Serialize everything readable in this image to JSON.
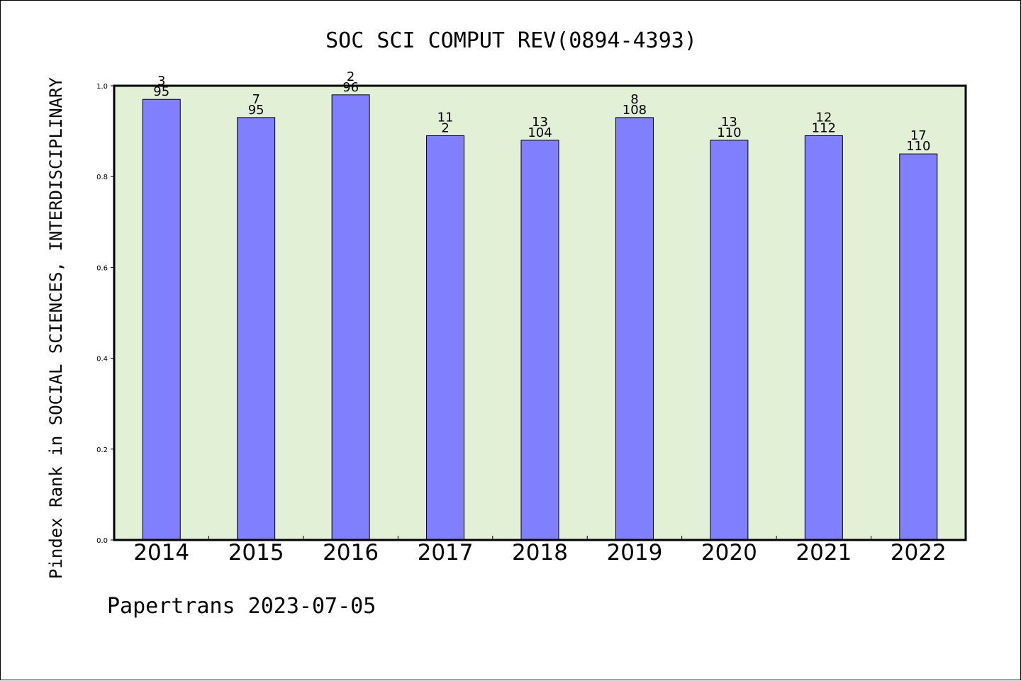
{
  "chart_data": {
    "type": "bar",
    "title": "SOC SCI COMPUT REV(0894-4393)",
    "ylabel": "Pindex Rank in SOCIAL SCIENCES, INTERDISCIPLINARY",
    "xlabel": "",
    "ylim": [
      0.0,
      1.0
    ],
    "yticks": [
      "0.0",
      "0.2",
      "0.4",
      "0.6",
      "0.8",
      "1.0"
    ],
    "grid": false,
    "categories": [
      "2014",
      "2015",
      "2016",
      "2017",
      "2018",
      "2019",
      "2020",
      "2021",
      "2022"
    ],
    "values": [
      0.97,
      0.93,
      0.98,
      0.89,
      0.88,
      0.93,
      0.88,
      0.89,
      0.85
    ],
    "rank_labels": [
      "3",
      "7",
      "2",
      "11",
      "13",
      "8",
      "13",
      "12",
      "17"
    ],
    "total_labels": [
      "95",
      "95",
      "96",
      "2",
      "104",
      "108",
      "110",
      "112",
      "110"
    ],
    "colors": {
      "bar_fill": "#8080ff",
      "plot_background": "#e2f0d6",
      "axis": "#000000"
    }
  },
  "footer": "Papertrans 2023-07-05"
}
